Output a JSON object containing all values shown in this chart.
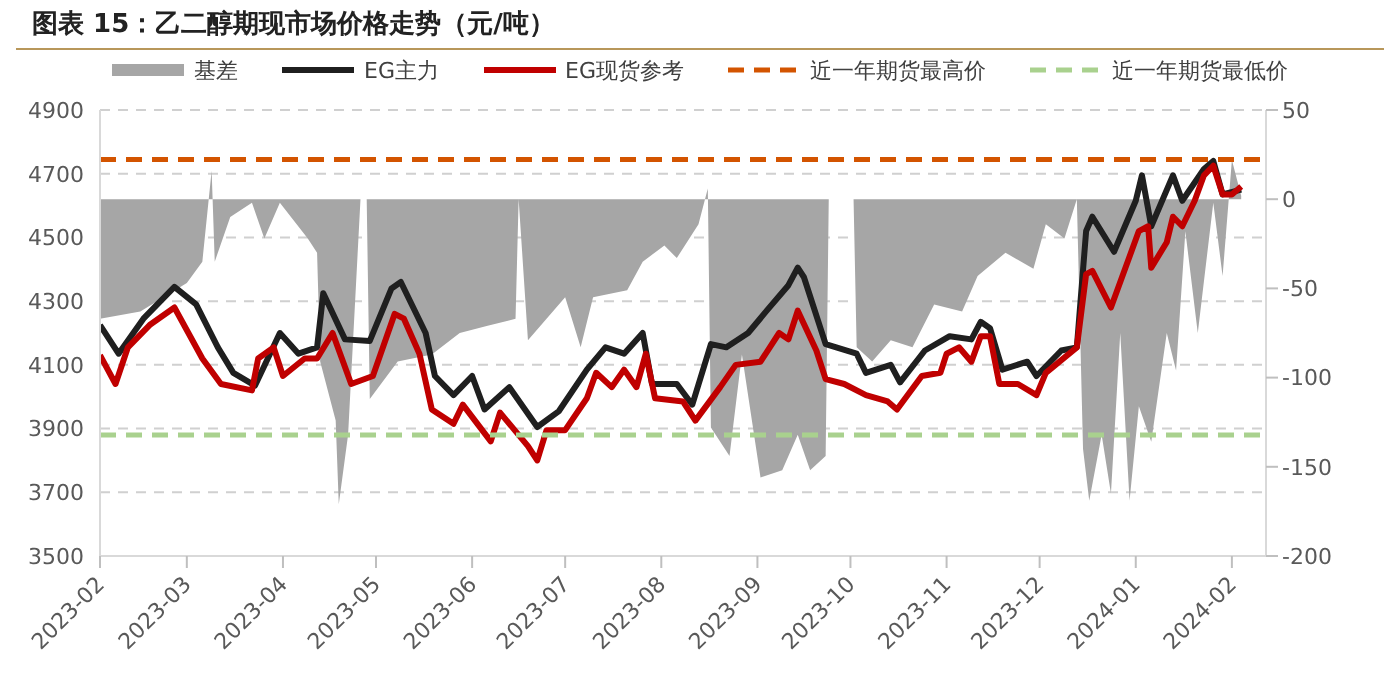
{
  "chart_data": {
    "type": "line",
    "title": "图表 15：乙二醇期现市场价格走势（元/吨）",
    "xlim": [
      "2023-02-01",
      "2024-02-12"
    ],
    "xticks": [
      "2023-02",
      "2023-03",
      "2023-04",
      "2023-05",
      "2023-06",
      "2023-07",
      "2023-08",
      "2023-09",
      "2023-10",
      "2023-11",
      "2023-12",
      "2024-01",
      "2024-02"
    ],
    "ylim": [
      3500,
      4900
    ],
    "yticks": [
      3500,
      3700,
      3900,
      4100,
      4300,
      4500,
      4700,
      4900
    ],
    "y2lim": [
      -200,
      50
    ],
    "y2ticks": [
      -200,
      -150,
      -100,
      -50,
      0,
      50
    ],
    "grid": "y",
    "legend": "top",
    "series": [
      {
        "name": "基差",
        "type": "area",
        "axis": "y2",
        "color": "#a6a6a6",
        "x": [
          "2023-02-01",
          "2023-02-14",
          "2023-03-01",
          "2023-03-06",
          "2023-03-09",
          "2023-03-10",
          "2023-03-15",
          "2023-03-22",
          "2023-03-26",
          "2023-03-31",
          "2023-04-09",
          "2023-04-12",
          "2023-04-13",
          "2023-04-18",
          "2023-04-19",
          "2023-04-22",
          "2023-04-26",
          "2023-04-28",
          "2023-04-29",
          "2023-05-08",
          "2023-05-19",
          "2023-05-28",
          "2023-06-06",
          "2023-06-15",
          "2023-06-16",
          "2023-06-19",
          "2023-07-01",
          "2023-07-06",
          "2023-07-10",
          "2023-07-21",
          "2023-07-26",
          "2023-08-02",
          "2023-08-06",
          "2023-08-13",
          "2023-08-16",
          "2023-08-17",
          "2023-08-23",
          "2023-08-27",
          "2023-09-02",
          "2023-09-09",
          "2023-09-14",
          "2023-09-18",
          "2023-09-23",
          "2023-09-24",
          "2023-10-02",
          "2023-10-03",
          "2023-10-08",
          "2023-10-14",
          "2023-10-21",
          "2023-10-28",
          "2023-11-06",
          "2023-11-11",
          "2023-11-20",
          "2023-11-29",
          "2023-12-03",
          "2023-12-09",
          "2023-12-13",
          "2023-12-15",
          "2023-12-17",
          "2023-12-21",
          "2023-12-24",
          "2023-12-27",
          "2023-12-30",
          "2024-01-02",
          "2024-01-06",
          "2024-01-11",
          "2024-01-14",
          "2024-01-17",
          "2024-01-21",
          "2024-01-26",
          "2024-01-29",
          "2024-02-01",
          "2024-02-04"
        ],
        "values": [
          -67,
          -63,
          -47,
          -35,
          16,
          -35,
          -10,
          -2,
          -22,
          -2,
          -22,
          -30,
          -91,
          -124,
          -171,
          -132,
          0,
          0,
          -112,
          -91,
          -87,
          -75,
          -71,
          -67,
          0,
          -79,
          -55,
          -83,
          -55,
          -51,
          -35,
          -26,
          -33,
          -14,
          6,
          -128,
          -144,
          -87,
          -156,
          -152,
          -132,
          -152,
          -144,
          0,
          0,
          -83,
          -91,
          -79,
          -83,
          -59,
          -63,
          -43,
          -30,
          -39,
          -14,
          -22,
          0,
          -140,
          -169,
          -132,
          -165,
          -75,
          -169,
          -116,
          -136,
          -75,
          -96,
          -18,
          -75,
          -2,
          -43,
          22,
          2
        ]
      },
      {
        "name": "EG主力",
        "color": "#1f1f1f",
        "x": [
          "2023-02-01",
          "2023-02-07",
          "2023-02-15",
          "2023-02-25",
          "2023-03-04",
          "2023-03-11",
          "2023-03-16",
          "2023-03-23",
          "2023-03-31",
          "2023-04-06",
          "2023-04-12",
          "2023-04-14",
          "2023-04-21",
          "2023-04-29",
          "2023-05-06",
          "2023-05-09",
          "2023-05-17",
          "2023-05-20",
          "2023-05-26",
          "2023-06-01",
          "2023-06-05",
          "2023-06-13",
          "2023-06-22",
          "2023-06-29",
          "2023-07-08",
          "2023-07-14",
          "2023-07-20",
          "2023-07-26",
          "2023-07-29",
          "2023-08-06",
          "2023-08-11",
          "2023-08-17",
          "2023-08-22",
          "2023-08-29",
          "2023-09-04",
          "2023-09-11",
          "2023-09-14",
          "2023-09-16",
          "2023-09-23",
          "2023-10-03",
          "2023-10-06",
          "2023-10-14",
          "2023-10-17",
          "2023-10-25",
          "2023-11-02",
          "2023-11-09",
          "2023-11-12",
          "2023-11-15",
          "2023-11-19",
          "2023-11-27",
          "2023-11-30",
          "2023-12-08",
          "2023-12-13",
          "2023-12-16",
          "2023-12-18",
          "2023-12-25",
          "2024-01-01",
          "2024-01-03",
          "2024-01-06",
          "2024-01-13",
          "2024-01-16",
          "2024-01-23",
          "2024-01-26",
          "2024-01-29",
          "2024-02-04"
        ],
        "values": [
          4225,
          4135,
          4245,
          4345,
          4290,
          4155,
          4075,
          4035,
          4200,
          4135,
          4155,
          4325,
          4180,
          4175,
          4340,
          4360,
          4200,
          4065,
          4005,
          4065,
          3960,
          4030,
          3905,
          3955,
          4085,
          4155,
          4135,
          4200,
          4040,
          4040,
          3975,
          4165,
          4155,
          4200,
          4270,
          4350,
          4405,
          4375,
          4165,
          4135,
          4075,
          4100,
          4045,
          4145,
          4190,
          4180,
          4235,
          4215,
          4085,
          4110,
          4065,
          4145,
          4155,
          4520,
          4565,
          4455,
          4615,
          4695,
          4535,
          4695,
          4615,
          4715,
          4740,
          4635,
          4650
        ]
      },
      {
        "name": "EG现货参考",
        "color": "#c00000",
        "x": [
          "2023-02-01",
          "2023-02-06",
          "2023-02-10",
          "2023-02-17",
          "2023-02-25",
          "2023-03-06",
          "2023-03-12",
          "2023-03-22",
          "2023-03-24",
          "2023-03-29",
          "2023-04-01",
          "2023-04-08",
          "2023-04-12",
          "2023-04-17",
          "2023-04-23",
          "2023-04-30",
          "2023-05-07",
          "2023-05-10",
          "2023-05-15",
          "2023-05-19",
          "2023-05-26",
          "2023-05-29",
          "2023-06-07",
          "2023-06-10",
          "2023-06-19",
          "2023-06-22",
          "2023-06-25",
          "2023-07-01",
          "2023-07-08",
          "2023-07-11",
          "2023-07-16",
          "2023-07-20",
          "2023-07-24",
          "2023-07-27",
          "2023-07-30",
          "2023-08-08",
          "2023-08-12",
          "2023-08-20",
          "2023-08-25",
          "2023-09-02",
          "2023-09-08",
          "2023-09-11",
          "2023-09-14",
          "2023-09-20",
          "2023-09-23",
          "2023-09-29",
          "2023-10-06",
          "2023-10-13",
          "2023-10-16",
          "2023-10-24",
          "2023-10-30",
          "2023-11-01",
          "2023-11-05",
          "2023-11-09",
          "2023-11-12",
          "2023-11-15",
          "2023-11-18",
          "2023-11-24",
          "2023-11-30",
          "2023-12-03",
          "2023-12-13",
          "2023-12-16",
          "2023-12-18",
          "2023-12-24",
          "2024-01-02",
          "2024-01-05",
          "2024-01-06",
          "2024-01-11",
          "2024-01-13",
          "2024-01-16",
          "2024-01-20",
          "2024-01-23",
          "2024-01-26",
          "2024-01-29",
          "2024-02-01",
          "2024-02-04"
        ],
        "values": [
          4130,
          4040,
          4155,
          4225,
          4280,
          4120,
          4040,
          4020,
          4120,
          4155,
          4065,
          4120,
          4120,
          4200,
          4040,
          4065,
          4260,
          4245,
          4135,
          3960,
          3915,
          3975,
          3860,
          3950,
          3845,
          3800,
          3895,
          3895,
          3995,
          4075,
          4030,
          4085,
          4030,
          4135,
          3995,
          3985,
          3925,
          4030,
          4100,
          4110,
          4200,
          4180,
          4270,
          4145,
          4055,
          4040,
          4005,
          3985,
          3960,
          4065,
          4075,
          4135,
          4155,
          4110,
          4190,
          4190,
          4040,
          4040,
          4005,
          4075,
          4155,
          4385,
          4395,
          4280,
          4520,
          4535,
          4405,
          4485,
          4565,
          4535,
          4615,
          4695,
          4725,
          4635,
          4635,
          4660
        ]
      }
    ],
    "ref_lines": [
      {
        "axis": "y",
        "value": 4745,
        "label": "近一年期货最高价",
        "color": "#d35400",
        "line_style": "dashed"
      },
      {
        "axis": "y",
        "value": 3880,
        "label": "近一年期货最低价",
        "color": "#a9d18e",
        "line_style": "dashed"
      }
    ]
  }
}
